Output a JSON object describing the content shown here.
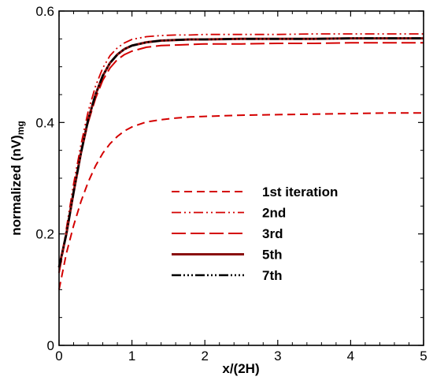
{
  "chart_data": {
    "type": "line",
    "xlabel": "x/(2H)",
    "ylabel_main": "normalized (nV)",
    "ylabel_sub": "mg",
    "xlim": [
      0,
      5
    ],
    "ylim": [
      0,
      0.6
    ],
    "xticks": [
      "0",
      "1",
      "2",
      "3",
      "4",
      "5"
    ],
    "yticks": [
      "0",
      "0.2",
      "0.4",
      "0.6"
    ],
    "legend_position": "center-right",
    "grid": false,
    "x": [
      0,
      0.1,
      0.2,
      0.3,
      0.4,
      0.5,
      0.6,
      0.7,
      0.8,
      0.9,
      1.0,
      1.2,
      1.4,
      1.6,
      1.8,
      2.0,
      2.5,
      3.0,
      3.5,
      4.0,
      4.5,
      5.0
    ],
    "series": [
      {
        "name": "1st iteration",
        "color": "#d40000",
        "dash": "10,6",
        "width": 2,
        "values": [
          0.1,
          0.165,
          0.215,
          0.258,
          0.293,
          0.322,
          0.345,
          0.362,
          0.375,
          0.385,
          0.392,
          0.401,
          0.405,
          0.408,
          0.41,
          0.411,
          0.413,
          0.414,
          0.415,
          0.416,
          0.417,
          0.417
        ]
      },
      {
        "name": "2nd",
        "color": "#d40000",
        "dash": "12,4,2,4,2,4",
        "width": 1.8,
        "values": [
          0.13,
          0.21,
          0.29,
          0.36,
          0.42,
          0.465,
          0.498,
          0.52,
          0.534,
          0.543,
          0.549,
          0.554,
          0.556,
          0.557,
          0.557,
          0.558,
          0.558,
          0.558,
          0.559,
          0.559,
          0.559,
          0.559
        ]
      },
      {
        "name": "3rd",
        "color": "#d40000",
        "dash": "18,6",
        "width": 2,
        "values": [
          0.13,
          0.2,
          0.275,
          0.345,
          0.4,
          0.443,
          0.476,
          0.498,
          0.513,
          0.522,
          0.528,
          0.535,
          0.538,
          0.539,
          0.54,
          0.541,
          0.541,
          0.542,
          0.542,
          0.543,
          0.543,
          0.543
        ]
      },
      {
        "name": "5th",
        "color": "#8a1010",
        "dash": "",
        "width": 3,
        "values": [
          0.14,
          0.2,
          0.275,
          0.345,
          0.405,
          0.45,
          0.484,
          0.507,
          0.522,
          0.532,
          0.538,
          0.544,
          0.547,
          0.548,
          0.549,
          0.549,
          0.55,
          0.55,
          0.55,
          0.551,
          0.551,
          0.551
        ]
      },
      {
        "name": "7th",
        "color": "#000000",
        "dash": "12,3,2,3,2,3,2,3",
        "width": 2.6,
        "values": [
          0.14,
          0.2,
          0.275,
          0.345,
          0.405,
          0.45,
          0.484,
          0.507,
          0.522,
          0.532,
          0.538,
          0.544,
          0.547,
          0.548,
          0.549,
          0.549,
          0.55,
          0.55,
          0.55,
          0.551,
          0.551,
          0.551
        ]
      }
    ]
  }
}
